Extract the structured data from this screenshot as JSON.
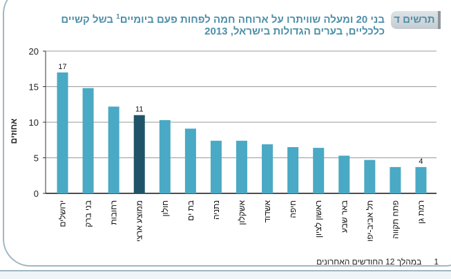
{
  "header": {
    "badge": "תרשים ד",
    "title_main": "בני 20 ומעלה שוויתרו על ארוחה חמה לפחות פעם ביומיים",
    "title_sup": "1",
    "title_rest": " בשל קשיים כלכליים, בערים הגדולות בישראל, 2013"
  },
  "footnote": {
    "number": "1",
    "text": "במהלך 12 החודשים האחרונים"
  },
  "colors": {
    "bar": "#4aa9c4",
    "highlight": "#1f5468"
  },
  "chart_data": {
    "type": "bar",
    "title": "בני 20 ומעלה שוויתרו על ארוחה חמה לפחות פעם ביומיים בשל קשיים כלכליים, בערים הגדולות בישראל, 2013",
    "xlabel": "",
    "ylabel": "אחוזים",
    "ylim": [
      0,
      20
    ],
    "yticks": [
      "0",
      "5",
      "10",
      "15",
      "20"
    ],
    "grid": true,
    "categories": [
      "ירושלים",
      "בני ברק",
      "רחובות",
      "ממוצע ארצי",
      "חולון",
      "בת ים",
      "נתניה",
      "אשקלון",
      "אשדוד",
      "חיפה",
      "ראשון לציון",
      "באר שבע",
      "תל אביב-יפו",
      "פתח תקווה",
      "רמת גן"
    ],
    "values": [
      17,
      14.8,
      12.2,
      11,
      10.3,
      9.1,
      7.4,
      7.4,
      6.9,
      6.5,
      6.4,
      5.3,
      4.7,
      3.7,
      3.7
    ],
    "highlight_index": 3,
    "data_labels": [
      {
        "index": 0,
        "text": "17"
      },
      {
        "index": 3,
        "text": "11"
      },
      {
        "index": 14,
        "text": "4"
      }
    ]
  }
}
